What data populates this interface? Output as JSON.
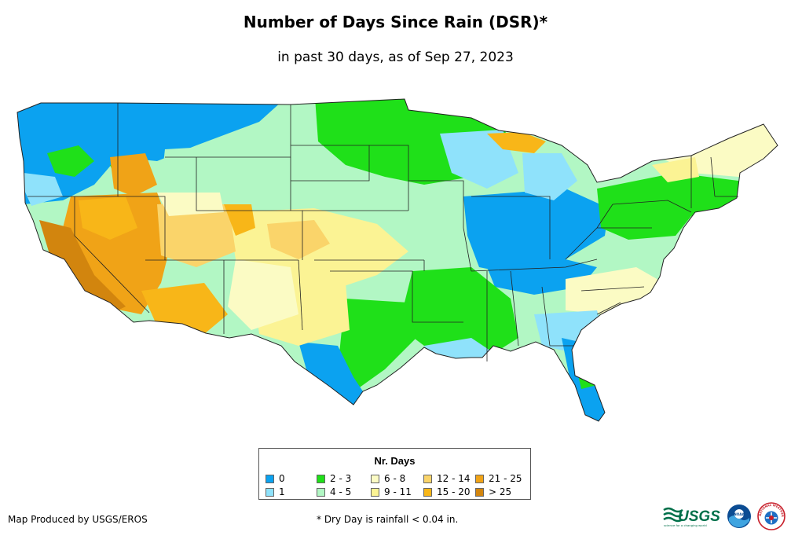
{
  "title": "Number of Days Since Rain (DSR)*",
  "subtitle": "in past 30 days, as of Sep 27, 2023",
  "legend": {
    "title": "Nr. Days",
    "items": [
      {
        "label": "0",
        "color": "#0ba2f0"
      },
      {
        "label": "1",
        "color": "#8fe2fb"
      },
      {
        "label": "2 - 3",
        "color": "#1fe019"
      },
      {
        "label": "4 - 5",
        "color": "#b2f7c4"
      },
      {
        "label": "6 - 8",
        "color": "#fbfbc4"
      },
      {
        "label": "9 - 11",
        "color": "#fbf394"
      },
      {
        "label": "12 - 14",
        "color": "#fad46a"
      },
      {
        "label": "15 - 20",
        "color": "#f8b618"
      },
      {
        "label": "21 - 25",
        "color": "#f0a317"
      },
      {
        "label": "> 25",
        "color": "#d2850e"
      }
    ]
  },
  "producer": "Map Produced by USGS/EROS",
  "footnote": "* Dry Day is rainfall < 0.04 in.",
  "logos": {
    "usgs_text": "USGS",
    "usgs_tagline": "science for a changing world",
    "noaa_text": "NOAA",
    "nws_text": "NATIONAL WEATHER SERVICE"
  }
}
